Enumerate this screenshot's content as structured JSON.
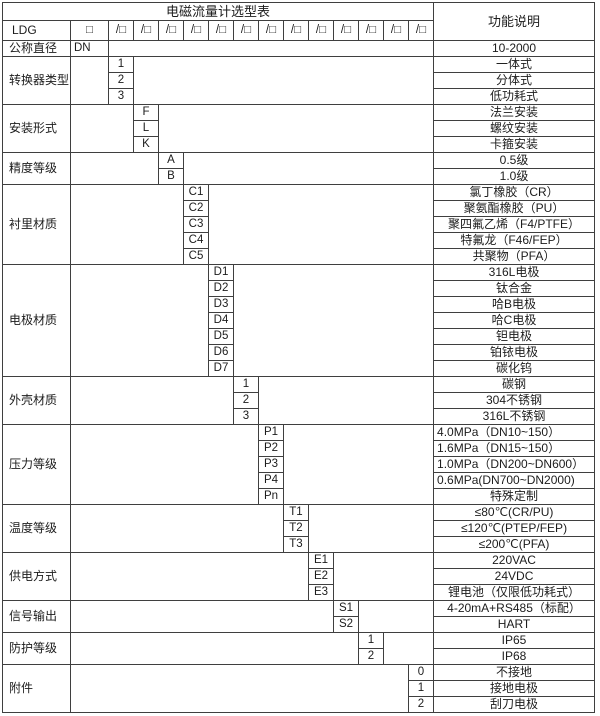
{
  "header": {
    "title": "电磁流量计选型表",
    "function_col": "功能说明",
    "model_prefix": "LDG",
    "box": "□",
    "slash_boxes": [
      "/□",
      "/□",
      "/□",
      "/□",
      "/□",
      "/□",
      "/□",
      "/□",
      "/□",
      "/□",
      "/□",
      "/□",
      "/□"
    ]
  },
  "table": {
    "groups": [
      {
        "label": "公称直径",
        "code_col": 0,
        "options": [
          {
            "code": "DN",
            "desc": "10-2000"
          }
        ]
      },
      {
        "label": "转换器类型",
        "code_col": 1,
        "options": [
          {
            "code": "1",
            "desc": "一体式"
          },
          {
            "code": "2",
            "desc": "分体式"
          },
          {
            "code": "3",
            "desc": "低功耗式"
          }
        ]
      },
      {
        "label": "安装形式",
        "code_col": 2,
        "options": [
          {
            "code": "F",
            "desc": "法兰安装"
          },
          {
            "code": "L",
            "desc": "螺纹安装"
          },
          {
            "code": "K",
            "desc": "卡箍安装"
          }
        ]
      },
      {
        "label": "精度等级",
        "code_col": 3,
        "options": [
          {
            "code": "A",
            "desc": "0.5级"
          },
          {
            "code": "B",
            "desc": "1.0级"
          }
        ]
      },
      {
        "label": "衬里材质",
        "code_col": 4,
        "options": [
          {
            "code": "C1",
            "desc": "氯丁橡胶（CR）"
          },
          {
            "code": "C2",
            "desc": "聚氨酯橡胶（PU）"
          },
          {
            "code": "C3",
            "desc": "聚四氟乙烯（F4/PTFE）"
          },
          {
            "code": "C4",
            "desc": "特氟龙（F46/FEP）"
          },
          {
            "code": "C5",
            "desc": "共聚物（PFA）"
          }
        ]
      },
      {
        "label": "电极材质",
        "code_col": 5,
        "options": [
          {
            "code": "D1",
            "desc": "316L电极"
          },
          {
            "code": "D2",
            "desc": "钛合金"
          },
          {
            "code": "D3",
            "desc": "哈B电极"
          },
          {
            "code": "D4",
            "desc": "哈C电极"
          },
          {
            "code": "D5",
            "desc": "钽电极"
          },
          {
            "code": "D6",
            "desc": "铂铱电极"
          },
          {
            "code": "D7",
            "desc": "碳化钨"
          }
        ]
      },
      {
        "label": "外壳材质",
        "code_col": 6,
        "options": [
          {
            "code": "1",
            "desc": "碳钢"
          },
          {
            "code": "2",
            "desc": "304不锈钢"
          },
          {
            "code": "3",
            "desc": "316L不锈钢"
          }
        ]
      },
      {
        "label": "压力等级",
        "code_col": 7,
        "options": [
          {
            "code": "P1",
            "desc": "4.0MPa（DN10~150）",
            "align": "left"
          },
          {
            "code": "P2",
            "desc": "1.6MPa（DN15~150）",
            "align": "left"
          },
          {
            "code": "P3",
            "desc": "1.0MPa（DN200~DN600）",
            "align": "left"
          },
          {
            "code": "P4",
            "desc": "0.6MPa(DN700~DN2000)",
            "align": "left"
          },
          {
            "code": "Pn",
            "desc": "特殊定制"
          }
        ]
      },
      {
        "label": "温度等级",
        "code_col": 8,
        "options": [
          {
            "code": "T1",
            "desc": "≤80℃(CR/PU)"
          },
          {
            "code": "T2",
            "desc": "≤120℃(PTEP/FEP)"
          },
          {
            "code": "T3",
            "desc": "≤200℃(PFA)"
          }
        ]
      },
      {
        "label": "供电方式",
        "code_col": 9,
        "options": [
          {
            "code": "E1",
            "desc": "220VAC"
          },
          {
            "code": "E2",
            "desc": "24VDC"
          },
          {
            "code": "E3",
            "desc": "锂电池（仅限低功耗式）"
          }
        ]
      },
      {
        "label": "信号输出",
        "code_col": 10,
        "options": [
          {
            "code": "S1",
            "desc": "4-20mA+RS485（标配）"
          },
          {
            "code": "S2",
            "desc": "HART"
          }
        ]
      },
      {
        "label": "防护等级",
        "code_col": 11,
        "options": [
          {
            "code": "1",
            "desc": "IP65"
          },
          {
            "code": "2",
            "desc": "IP68"
          }
        ]
      },
      {
        "label": "附件",
        "code_col": 13,
        "options": [
          {
            "code": "0",
            "desc": "不接地"
          },
          {
            "code": "1",
            "desc": "接地电极"
          },
          {
            "code": "2",
            "desc": "刮刀电极"
          }
        ]
      }
    ]
  }
}
